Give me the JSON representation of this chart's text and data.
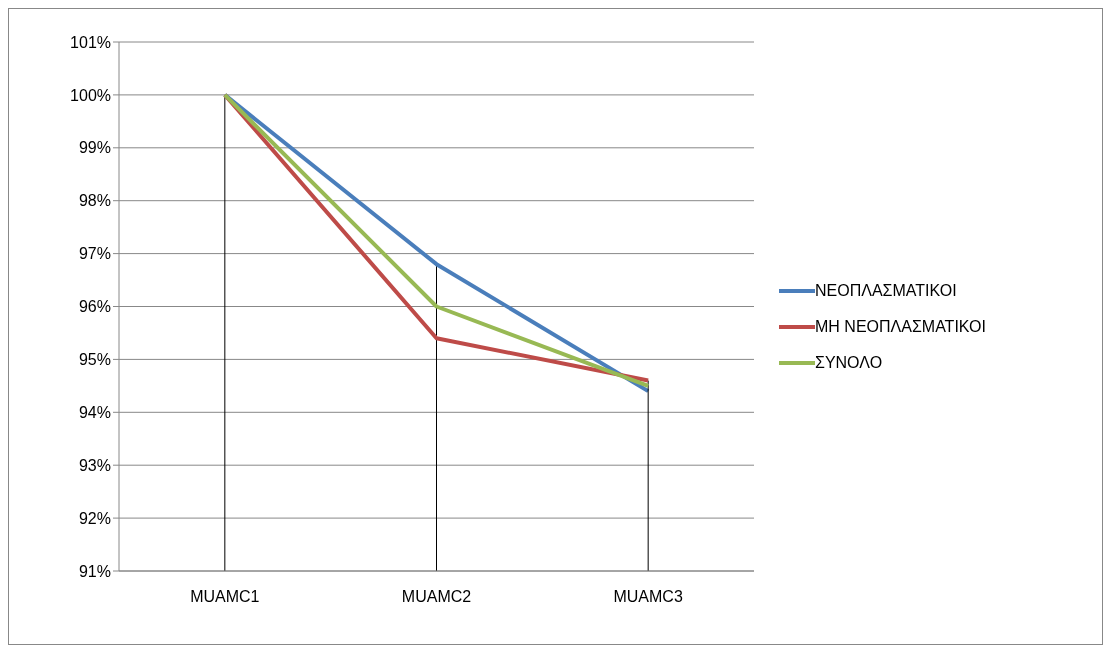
{
  "chart_data": {
    "type": "line",
    "categories": [
      "MUAMC1",
      "MUAMC2",
      "MUAMC3"
    ],
    "series": [
      {
        "name": "ΝΕΟΠΛΑΣΜΑΤΙΚΟΙ",
        "color": "#4a7ebb",
        "values": [
          100,
          96.8,
          94.4
        ],
        "errors": [
          [
            91,
            100
          ],
          [
            91,
            96.8
          ],
          null
        ]
      },
      {
        "name": "ΜΗ ΝΕΟΠΛΑΣΜΑΤΙΚΟΙ",
        "color": "#be4b48",
        "values": [
          100,
          95.4,
          94.6
        ],
        "errors": [
          null,
          null,
          [
            91,
            94.6
          ]
        ]
      },
      {
        "name": "ΣΥΝΟΛΟ",
        "color": "#98b954",
        "values": [
          100,
          96.0,
          94.5
        ]
      }
    ],
    "ylim": [
      91,
      101
    ],
    "yticks": [
      {
        "value": 91,
        "label": "91%"
      },
      {
        "value": 92,
        "label": "92%"
      },
      {
        "value": 93,
        "label": "93%"
      },
      {
        "value": 94,
        "label": "94%"
      },
      {
        "value": 95,
        "label": "95%"
      },
      {
        "value": 96,
        "label": "96%"
      },
      {
        "value": 97,
        "label": "97%"
      },
      {
        "value": 98,
        "label": "98%"
      },
      {
        "value": 99,
        "label": "99%"
      },
      {
        "value": 100,
        "label": "100%"
      },
      {
        "value": 101,
        "label": "101%"
      }
    ],
    "grid": "y",
    "legend": "right",
    "marker": "none",
    "line_style": "solid"
  }
}
